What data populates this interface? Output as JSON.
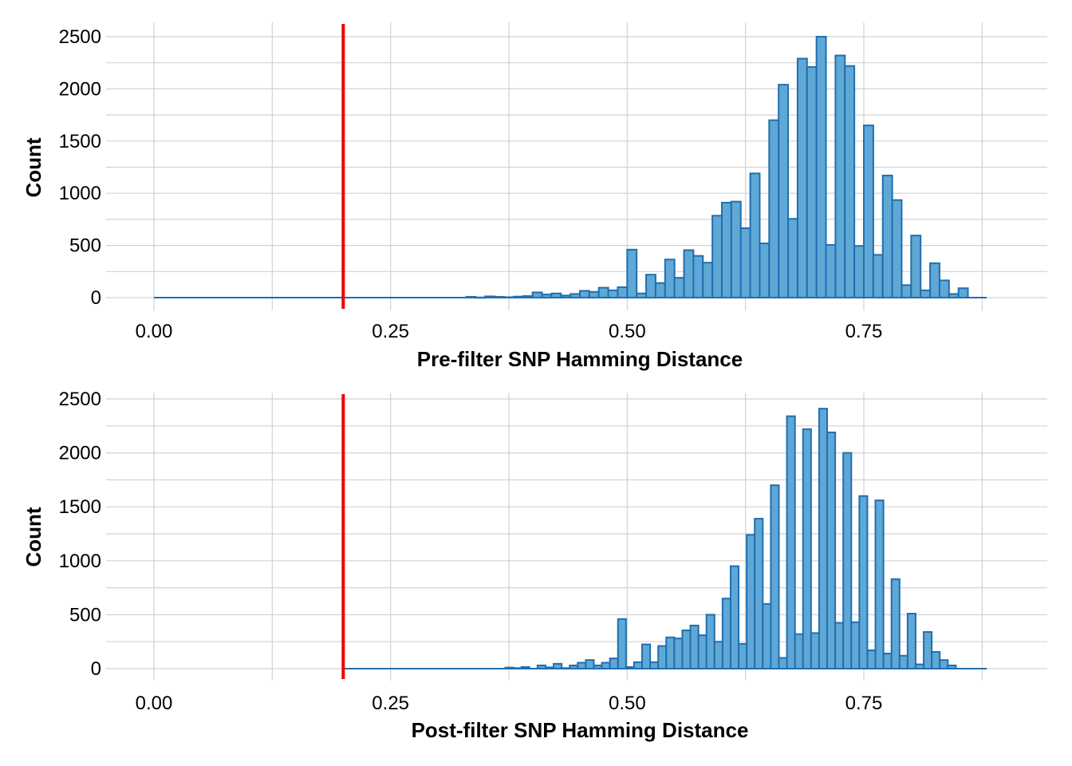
{
  "chart_data": [
    {
      "type": "bar",
      "subtype": "histogram",
      "xlabel": "Pre-filter SNP Hamming Distance",
      "ylabel": "Count",
      "xlim": [
        -0.05,
        0.92
      ],
      "ylim": [
        0,
        2620
      ],
      "x_ticks": [
        0.0,
        0.25,
        0.5,
        0.75
      ],
      "x_tick_labels": [
        "0.00",
        "0.25",
        "0.50",
        "0.75"
      ],
      "y_ticks": [
        0,
        500,
        1000,
        1500,
        2000,
        2500
      ],
      "y_tick_labels": [
        "0",
        "500",
        "1000",
        "1500",
        "2000",
        "2500"
      ],
      "grid": true,
      "threshold_line": {
        "x": 0.2,
        "color": "#ee0000"
      },
      "bar_fill": "#5fa8d6",
      "bar_stroke": "#1f6fb0",
      "bin_width": 0.01,
      "baseline_range": [
        0.0,
        0.88
      ],
      "bin_centers": [
        0.335,
        0.345,
        0.355,
        0.365,
        0.375,
        0.385,
        0.395,
        0.405,
        0.415,
        0.425,
        0.435,
        0.445,
        0.455,
        0.465,
        0.475,
        0.485,
        0.495,
        0.505,
        0.515,
        0.525,
        0.535,
        0.545,
        0.555,
        0.565,
        0.575,
        0.585,
        0.595,
        0.605,
        0.615,
        0.625,
        0.635,
        0.645,
        0.655,
        0.665,
        0.675,
        0.685,
        0.695,
        0.705,
        0.715,
        0.725,
        0.735,
        0.745,
        0.755,
        0.765,
        0.775,
        0.785,
        0.795,
        0.805,
        0.815,
        0.825,
        0.835,
        0.845,
        0.855
      ],
      "values": [
        8,
        2,
        12,
        8,
        4,
        10,
        15,
        50,
        30,
        40,
        20,
        35,
        65,
        55,
        95,
        70,
        100,
        460,
        40,
        220,
        140,
        365,
        190,
        455,
        400,
        335,
        785,
        910,
        920,
        665,
        1190,
        520,
        1700,
        2040,
        755,
        2290,
        2210,
        2500,
        505,
        2320,
        2220,
        495,
        1650,
        410,
        1170,
        935,
        120,
        595,
        70,
        330,
        165,
        35,
        90
      ]
    },
    {
      "type": "bar",
      "subtype": "histogram",
      "xlabel": "Post-filter SNP Hamming Distance",
      "ylabel": "Count",
      "xlim": [
        -0.05,
        0.92
      ],
      "ylim": [
        0,
        2500
      ],
      "x_ticks": [
        0.0,
        0.25,
        0.5,
        0.75
      ],
      "x_tick_labels": [
        "0.00",
        "0.25",
        "0.50",
        "0.75"
      ],
      "y_ticks": [
        0,
        500,
        1000,
        1500,
        2000,
        2500
      ],
      "y_tick_labels": [
        "0",
        "500",
        "1000",
        "1500",
        "2000",
        "2500"
      ],
      "grid": true,
      "threshold_line": {
        "x": 0.2,
        "color": "#ee0000"
      },
      "bar_fill": "#5fa8d6",
      "bar_stroke": "#1f6fb0",
      "bin_width": 0.0085,
      "baseline_range": [
        0.2,
        0.88
      ],
      "bin_centers": [
        0.3755,
        0.384,
        0.3925,
        0.401,
        0.4095,
        0.418,
        0.4265,
        0.435,
        0.4435,
        0.452,
        0.4605,
        0.469,
        0.4775,
        0.486,
        0.4945,
        0.503,
        0.5115,
        0.52,
        0.5285,
        0.537,
        0.5455,
        0.554,
        0.5625,
        0.571,
        0.5795,
        0.588,
        0.5965,
        0.605,
        0.6135,
        0.622,
        0.6305,
        0.639,
        0.6475,
        0.656,
        0.6645,
        0.673,
        0.6815,
        0.69,
        0.6985,
        0.707,
        0.7155,
        0.724,
        0.7325,
        0.741,
        0.7495,
        0.758,
        0.7665,
        0.775,
        0.7835,
        0.792,
        0.8005,
        0.809,
        0.8175,
        0.826,
        0.8345,
        0.843
      ],
      "values": [
        10,
        5,
        15,
        0,
        30,
        12,
        45,
        5,
        30,
        55,
        80,
        30,
        55,
        95,
        460,
        15,
        60,
        225,
        60,
        210,
        290,
        280,
        355,
        400,
        310,
        500,
        250,
        650,
        950,
        230,
        1240,
        1390,
        600,
        1700,
        100,
        2340,
        320,
        2220,
        330,
        2410,
        2190,
        425,
        2000,
        430,
        1600,
        170,
        1560,
        140,
        830,
        120,
        510,
        40,
        340,
        155,
        80,
        30
      ]
    }
  ]
}
